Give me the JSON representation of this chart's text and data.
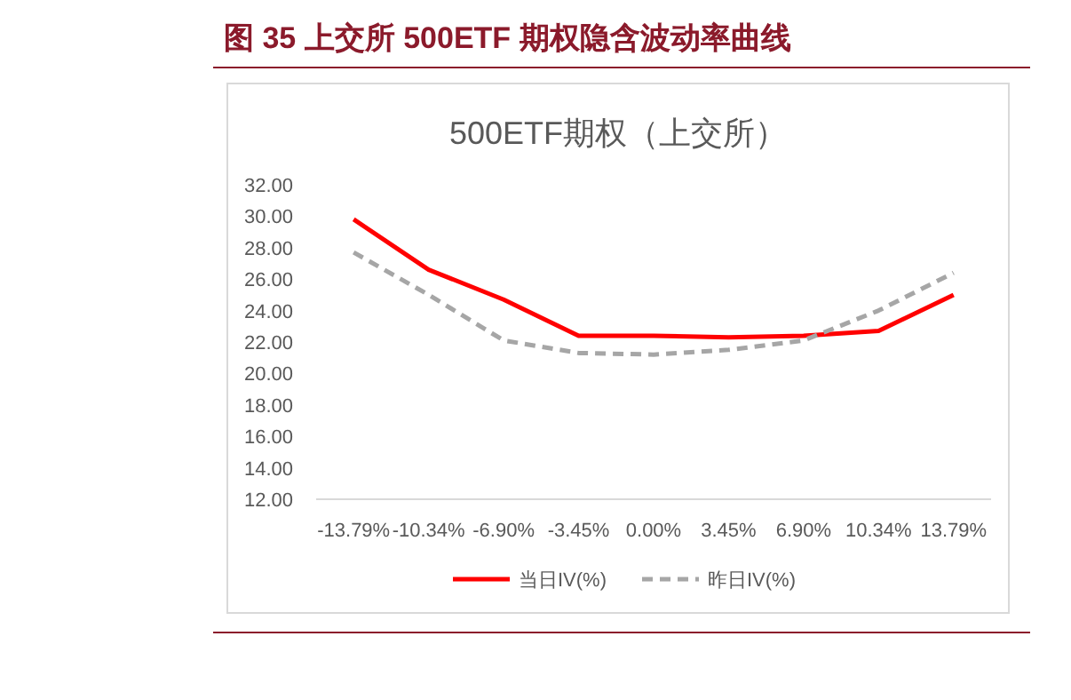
{
  "chart_data": {
    "type": "line",
    "title": "图 35    上交所 500ETF 期权隐含波动率曲线",
    "subtitle": "500ETF期权（上交所）",
    "categories": [
      "-13.79%",
      "-10.34%",
      "-6.90%",
      "-3.45%",
      "0.00%",
      "3.45%",
      "6.90%",
      "10.34%",
      "13.79%"
    ],
    "series": [
      {
        "name": "当日IV(%)",
        "color": "#ff0000",
        "line_style": "solid",
        "values": [
          29.8,
          26.6,
          24.7,
          22.4,
          22.4,
          22.3,
          22.4,
          22.7,
          25.0
        ]
      },
      {
        "name": "昨日IV(%)",
        "color": "#a6a6a6",
        "line_style": "dashed",
        "values": [
          27.7,
          25.0,
          22.1,
          21.3,
          21.2,
          21.5,
          22.1,
          24.0,
          26.4
        ]
      }
    ],
    "ylim": [
      12,
      32
    ],
    "yticks": [
      {
        "value": 12,
        "label": "12.00"
      },
      {
        "value": 14,
        "label": "14.00"
      },
      {
        "value": 16,
        "label": "16.00"
      },
      {
        "value": 18,
        "label": "18.00"
      },
      {
        "value": 20,
        "label": "20.00"
      },
      {
        "value": 22,
        "label": "22.00"
      },
      {
        "value": 24,
        "label": "24.00"
      },
      {
        "value": 26,
        "label": "26.00"
      },
      {
        "value": 28,
        "label": "28.00"
      },
      {
        "value": 30,
        "label": "30.00"
      },
      {
        "value": 32,
        "label": "32.00"
      }
    ],
    "grid": false,
    "legend": "bottom",
    "marker": "none"
  }
}
